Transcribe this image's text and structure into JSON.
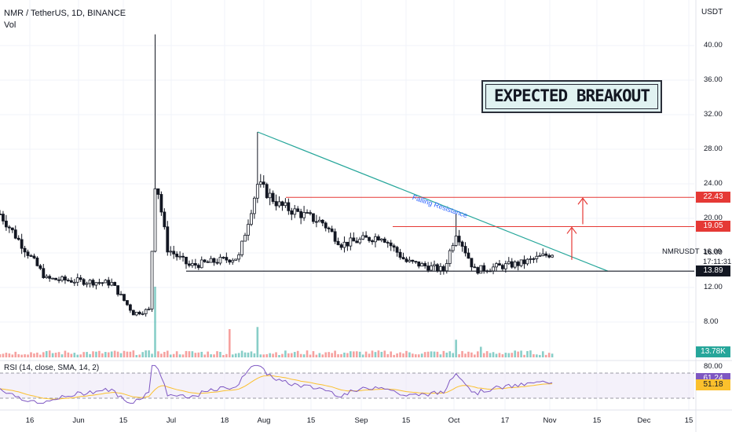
{
  "header": {
    "title": "NMR / TetherUS, 1D, BINANCE",
    "volume_label": "Vol",
    "currency": "USDT",
    "rsi_label": "RSI (14, close, SMA, 14, 2)"
  },
  "callout": "EXPECTED BREAKOUT",
  "annotation": "Falling Resistance",
  "symbol_label": "NMRUSDT",
  "last_price": "16.09",
  "countdown": "17:11:31",
  "colors": {
    "up": "#26a69a",
    "down": "#ef5350",
    "trendline": "#26a69a",
    "resistance": "#e53935",
    "support": "#131722",
    "rsi_line": "#7e57c2",
    "rsi_ma": "#fbc02d",
    "annotation": "#2962ff"
  },
  "chart_data": [
    {
      "type": "candlestick",
      "title": "NMR / TetherUS, 1D, BINANCE",
      "yaxis_ticks": [
        "40.00",
        "36.00",
        "32.00",
        "28.00",
        "24.00",
        "20.00",
        "16.00",
        "12.00",
        "8.00"
      ],
      "xaxis_ticks": [
        "16",
        "Jun",
        "15",
        "Jul",
        "18",
        "Aug",
        "15",
        "Sep",
        "15",
        "Oct",
        "17",
        "Nov",
        "15",
        "Dec",
        "15"
      ],
      "ylim": [
        4.5,
        44
      ],
      "price_tags": [
        {
          "label": "22.43",
          "value": 22.43,
          "kind": "resistance"
        },
        {
          "label": "19.05",
          "value": 19.05,
          "kind": "resistance"
        },
        {
          "label": "13.89",
          "value": 13.89,
          "kind": "support"
        }
      ],
      "trendline": {
        "from": [
          "Aug 1",
          30.0
        ],
        "to": [
          "Nov 22",
          13.89
        ]
      },
      "ohlc_anchors": [
        {
          "date": "May 10",
          "close": 20.5
        },
        {
          "date": "May 25",
          "close": 13.0
        },
        {
          "date": "Jun 15",
          "close": 12.5
        },
        {
          "date": "Jun 22",
          "close": 9.0
        },
        {
          "date": "Jun 27",
          "close": 9.4
        },
        {
          "date": "Jun 29",
          "close": 25.0,
          "high": 41.3
        },
        {
          "date": "Jul 3",
          "close": 16.5
        },
        {
          "date": "Jul 10",
          "close": 14.5
        },
        {
          "date": "Jul 26",
          "close": 15.5
        },
        {
          "date": "Aug 1",
          "close": 24.0,
          "high": 30.0
        },
        {
          "date": "Aug 8",
          "close": 21.5
        },
        {
          "date": "Aug 22",
          "close": 19.5
        },
        {
          "date": "Aug 28",
          "close": 17.0
        },
        {
          "date": "Sep 10",
          "close": 18.0
        },
        {
          "date": "Sep 18",
          "close": 15.0
        },
        {
          "date": "Sep 30",
          "close": 14.0
        },
        {
          "date": "Oct 4",
          "close": 18.5,
          "high": 20.5
        },
        {
          "date": "Oct 10",
          "close": 14.0
        },
        {
          "date": "Oct 25",
          "close": 14.8
        },
        {
          "date": "Nov 5",
          "close": 16.09
        }
      ]
    },
    {
      "type": "bar",
      "title": "Vol",
      "last_value_label": "13.78K",
      "spikes": [
        {
          "date": "Jun 29",
          "relative": 1.0
        },
        {
          "date": "Jul 23",
          "relative": 0.4
        },
        {
          "date": "Aug 1",
          "relative": 0.43
        },
        {
          "date": "Oct 4",
          "relative": 0.25
        },
        {
          "date": "Oct 12",
          "relative": 0.15
        }
      ]
    },
    {
      "type": "line",
      "title": "RSI (14, close, SMA, 14, 2)",
      "yaxis_ticks": [
        "80.00"
      ],
      "ylim": [
        20,
        85
      ],
      "bands": [
        70,
        30
      ],
      "series": [
        {
          "name": "RSI",
          "last_label": "61.24",
          "last_value": 61.24
        },
        {
          "name": "SMA",
          "last_label": "51.18",
          "last_value": 51.18
        }
      ]
    }
  ]
}
